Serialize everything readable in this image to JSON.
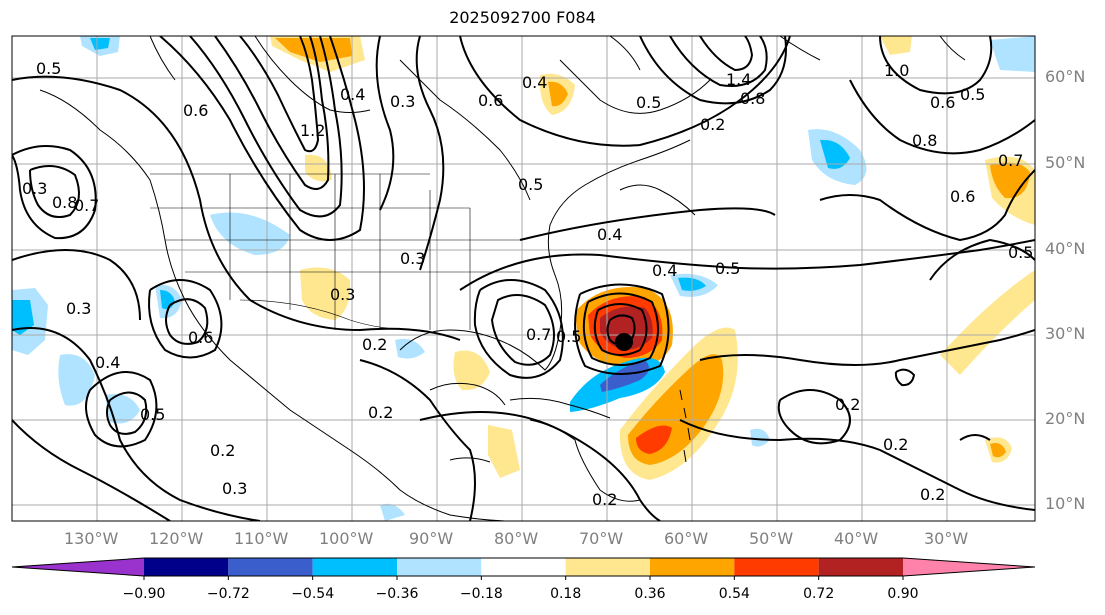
{
  "title": "2025092700 F084",
  "lat_labels": [
    "10°N",
    "20°N",
    "30°N",
    "40°N",
    "50°N",
    "60°N"
  ],
  "lon_labels": [
    "130°W",
    "120°W",
    "110°W",
    "100°W",
    "90°W",
    "80°W",
    "70°W",
    "60°W",
    "50°W",
    "40°W",
    "30°W"
  ],
  "colorbar": {
    "ticks": [
      "−0.90",
      "−0.72",
      "−0.54",
      "−0.36",
      "−0.18",
      "0.18",
      "0.36",
      "0.54",
      "0.72",
      "0.90"
    ],
    "colors": [
      "#9a32cd",
      "#00008b",
      "#3a5fcd",
      "#00bfff",
      "#afe3ff",
      "#ffffff",
      "#ffe78f",
      "#ffa500",
      "#ff3b00",
      "#b22222",
      "#ff82ab"
    ]
  },
  "contour_labels": [
    "0.5",
    "0.6",
    "0.3",
    "0.8",
    "1.2",
    "0.7",
    "0.6",
    "0.4",
    "0.2",
    "0.5",
    "0.4",
    "0.3",
    "0.2",
    "1.4",
    "0.8",
    "1.0",
    "0.6",
    "0.5",
    "0.8",
    "0.7",
    "0.6",
    "0.5",
    "0.4",
    "0.5",
    "0.2",
    "0.2",
    "0.2",
    "0.3",
    "0.6",
    "0.4",
    "0.5",
    "0.4",
    "0.3",
    "0.2",
    "0.7",
    "0.5",
    "0.3",
    "0.3",
    "0.2",
    "0.5",
    "0.2"
  ],
  "chart_data": {
    "type": "contour-map",
    "title": "2025092700 F084",
    "projection": "lat-lon",
    "lon_range": [
      -140,
      -20
    ],
    "lat_range": [
      7,
      65
    ],
    "colorbar_levels": [
      -0.9,
      -0.72,
      -0.54,
      -0.36,
      -0.18,
      0.18,
      0.36,
      0.54,
      0.72,
      0.9
    ],
    "colorbar_extend": "both",
    "storm_marker": {
      "lon": -68,
      "lat": 29
    }
  }
}
